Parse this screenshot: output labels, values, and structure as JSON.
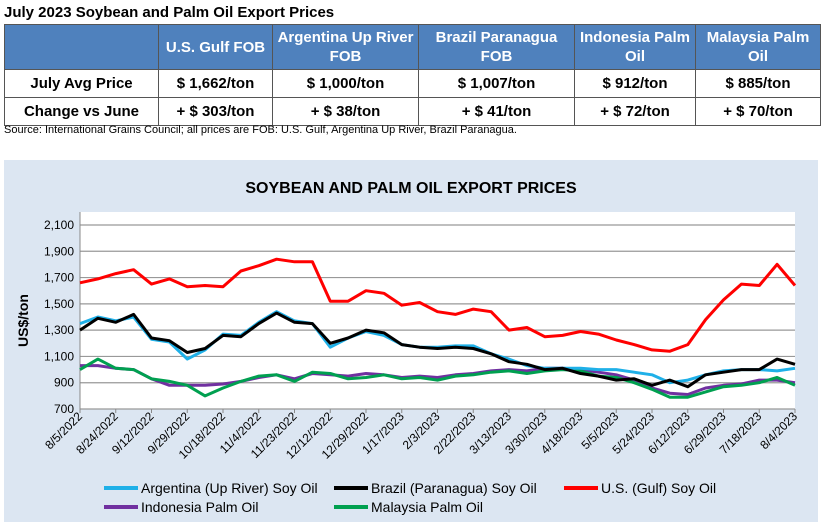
{
  "table": {
    "title": "July 2023 Soybean and Palm Oil Export Prices",
    "headers": [
      "",
      "U.S. Gulf FOB",
      "Argentina Up River FOB",
      "Brazil Paranagua FOB",
      "Indonesia Palm Oil",
      "Malaysia Palm Oil"
    ],
    "rows": [
      [
        "July Avg Price",
        "$ 1,662/ton",
        "$ 1,000/ton",
        "$ 1,007/ton",
        "$ 912/ton",
        "$ 885/ton"
      ],
      [
        "Change vs June",
        "+ $ 303/ton",
        "+ $ 38/ton",
        "+ $ 41/ton",
        "+ $ 72/ton",
        "+ $ 70/ton"
      ]
    ],
    "source": "Source: International Grains Council; all prices are FOB: U.S. Gulf, Argentina Up River, Brazil Paranagua."
  },
  "chart_data": {
    "type": "line",
    "title": "SOYBEAN AND PALM OIL EXPORT PRICES",
    "ylabel": "US$/ton",
    "xlabel": "",
    "ylim": [
      700,
      2100
    ],
    "yticks": [
      "700",
      "900",
      "1,100",
      "1,300",
      "1,500",
      "1,700",
      "1,900",
      "2,100"
    ],
    "xticks": [
      "8/5/2022",
      "8/24/2022",
      "9/12/2022",
      "9/29/2022",
      "10/18/2022",
      "11/4/2022",
      "11/23/2022",
      "12/12/2022",
      "12/29/2022",
      "1/17/2023",
      "2/3/2023",
      "2/22/2023",
      "3/13/2023",
      "3/30/2023",
      "4/18/2023",
      "5/5/2023",
      "5/24/2023",
      "6/12/2023",
      "6/29/2023",
      "7/18/2023",
      "8/4/2023"
    ],
    "grid": true,
    "legend": "bottom",
    "series": [
      {
        "name": "Argentina (Up River) Soy Oil",
        "color": "#1FB0E8",
        "values": [
          1350,
          1400,
          1370,
          1400,
          1230,
          1210,
          1080,
          1150,
          1270,
          1260,
          1360,
          1440,
          1370,
          1350,
          1170,
          1240,
          1290,
          1260,
          1190,
          1170,
          1170,
          1180,
          1180,
          1120,
          1080,
          1030,
          1010,
          1010,
          1010,
          1000,
          1000,
          980,
          960,
          900,
          920,
          960,
          990,
          1000,
          1000,
          990,
          1010
        ]
      },
      {
        "name": "Brazil (Paranagua) Soy Oil",
        "color": "#000000",
        "values": [
          1300,
          1390,
          1360,
          1420,
          1240,
          1220,
          1130,
          1160,
          1260,
          1250,
          1350,
          1430,
          1360,
          1350,
          1200,
          1240,
          1300,
          1280,
          1190,
          1170,
          1160,
          1170,
          1160,
          1120,
          1060,
          1040,
          1000,
          1010,
          970,
          950,
          920,
          930,
          880,
          920,
          870,
          960,
          980,
          1000,
          1000,
          1080,
          1040
        ]
      },
      {
        "name": "U.S. (Gulf) Soy Oil",
        "color": "#FF0000",
        "values": [
          1660,
          1690,
          1730,
          1760,
          1650,
          1690,
          1630,
          1640,
          1630,
          1750,
          1790,
          1840,
          1820,
          1820,
          1520,
          1520,
          1600,
          1580,
          1490,
          1510,
          1440,
          1420,
          1460,
          1440,
          1300,
          1320,
          1250,
          1260,
          1290,
          1270,
          1225,
          1190,
          1150,
          1140,
          1190,
          1380,
          1530,
          1650,
          1640,
          1800,
          1640
        ]
      },
      {
        "name": "Indonesia Palm Oil",
        "color": "#7030A0",
        "values": [
          1030,
          1030,
          1010,
          1000,
          930,
          880,
          880,
          880,
          890,
          910,
          940,
          960,
          930,
          970,
          960,
          950,
          970,
          960,
          940,
          950,
          940,
          960,
          970,
          990,
          1000,
          990,
          1010,
          1010,
          1000,
          980,
          960,
          920,
          860,
          820,
          810,
          860,
          880,
          890,
          920,
          920,
          900
        ]
      },
      {
        "name": "Malaysia Palm Oil",
        "color": "#00A050",
        "values": [
          1000,
          1080,
          1010,
          1000,
          930,
          910,
          880,
          800,
          860,
          910,
          950,
          960,
          910,
          980,
          970,
          930,
          940,
          960,
          930,
          940,
          920,
          950,
          960,
          980,
          990,
          970,
          990,
          1000,
          990,
          950,
          940,
          900,
          850,
          790,
          790,
          830,
          870,
          880,
          900,
          940,
          880
        ]
      }
    ]
  }
}
